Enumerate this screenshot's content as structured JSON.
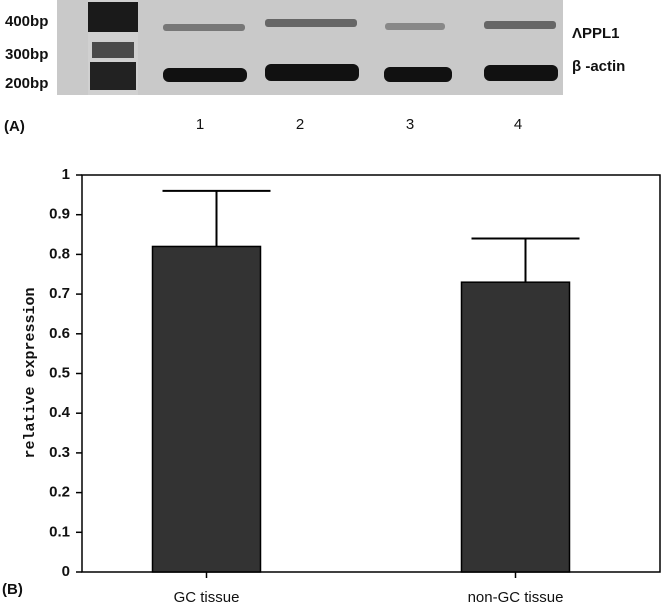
{
  "panel_a": {
    "label": "(A)",
    "markers": [
      "400bp",
      "300bp",
      "200bp"
    ],
    "bands": [
      "ΛPPL1",
      "β -actin"
    ],
    "lanes": [
      "1",
      "2",
      "3",
      "4"
    ]
  },
  "chart_data": {
    "type": "bar",
    "panel_label": "(B)",
    "y_label": "relative expression",
    "categories": [
      "GC tissue",
      "non-GC tissue"
    ],
    "values": [
      0.82,
      0.73
    ],
    "errors": [
      0.14,
      0.11
    ],
    "color": "#333333",
    "ylim": [
      0,
      1
    ],
    "yticks": [
      0,
      0.1,
      0.2,
      0.3,
      0.4,
      0.5,
      0.6,
      0.7,
      0.8,
      0.9,
      1
    ]
  }
}
